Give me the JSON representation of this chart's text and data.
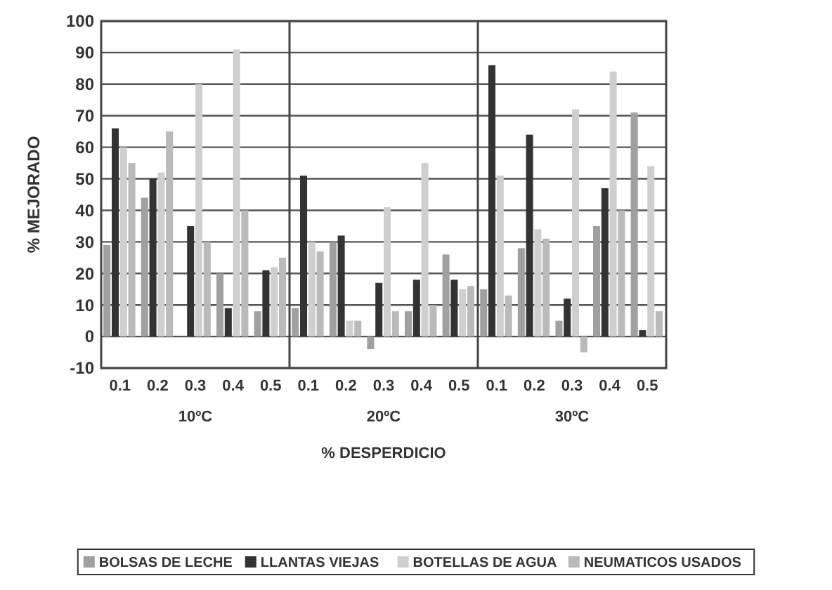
{
  "chart_data": {
    "type": "bar",
    "xlabel": "% DESPERDICIO",
    "ylabel": "% MEJORADO",
    "categories": [
      "0.1",
      "0.2",
      "0.3",
      "0.4",
      "0.5",
      "0.1",
      "0.2",
      "0.3",
      "0.4",
      "0.5",
      "0.1",
      "0.2",
      "0.3",
      "0.4",
      "0.5"
    ],
    "annotations": [
      "10ºC",
      "20ºC",
      "30ºC"
    ],
    "series": [
      {
        "name": "BOLSAS DE LECHE",
        "color": "#a0a0a0",
        "values": [
          29,
          44,
          0,
          20,
          8,
          9,
          30,
          -4,
          8,
          26,
          15,
          28,
          5,
          35,
          71
        ]
      },
      {
        "name": "LLANTAS VIEJAS",
        "color": "#333333",
        "values": [
          66,
          50,
          35,
          9,
          21,
          51,
          32,
          17,
          18,
          18,
          86,
          64,
          12,
          47,
          2
        ]
      },
      {
        "name": "BOTELLAS DE AGUA",
        "color": "#cfcfcf",
        "values": [
          60,
          52,
          80,
          91,
          22,
          30,
          5,
          41,
          55,
          15,
          51,
          34,
          72,
          84,
          54
        ]
      },
      {
        "name": "NEUMATICOS USADOS",
        "color": "#bababa",
        "values": [
          55,
          65,
          30,
          40,
          25,
          27,
          5,
          8,
          10,
          16,
          13,
          31,
          -5,
          40,
          8
        ]
      }
    ],
    "ylim": [
      -10,
      100
    ],
    "yticks": [
      -10,
      0,
      10,
      20,
      30,
      40,
      50,
      60,
      70,
      80,
      90,
      100
    ],
    "grid": "y",
    "legend": "bottom"
  }
}
